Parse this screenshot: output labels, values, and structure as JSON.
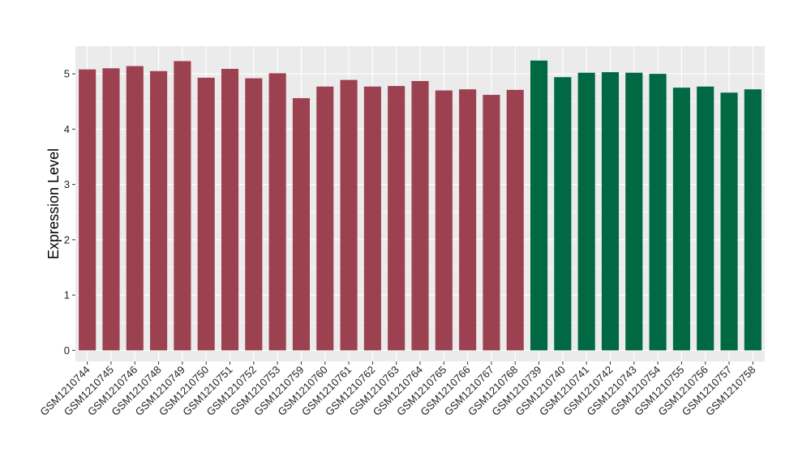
{
  "chart_data": {
    "type": "bar",
    "title": "",
    "xlabel": "",
    "ylabel": "Expression Level",
    "ylim": [
      -0.2,
      5.5
    ],
    "yticks": [
      0,
      1,
      2,
      3,
      4,
      5
    ],
    "grid": true,
    "legend": "none",
    "colors": {
      "group_1": "#9B4150",
      "group_2": "#006842",
      "panel_background": "#EBEBEB",
      "gridline": "#FFFFFF"
    },
    "categories": [
      "GSM1210744",
      "GSM1210745",
      "GSM1210746",
      "GSM1210748",
      "GSM1210749",
      "GSM1210750",
      "GSM1210751",
      "GSM1210752",
      "GSM1210753",
      "GSM1210759",
      "GSM1210760",
      "GSM1210761",
      "GSM1210762",
      "GSM1210763",
      "GSM1210764",
      "GSM1210765",
      "GSM1210766",
      "GSM1210767",
      "GSM1210768",
      "GSM1210739",
      "GSM1210740",
      "GSM1210741",
      "GSM1210742",
      "GSM1210743",
      "GSM1210754",
      "GSM1210755",
      "GSM1210756",
      "GSM1210757",
      "GSM1210758"
    ],
    "values": [
      5.08,
      5.1,
      5.14,
      5.05,
      5.23,
      4.93,
      5.09,
      4.92,
      5.01,
      4.56,
      4.77,
      4.89,
      4.77,
      4.78,
      4.87,
      4.7,
      4.72,
      4.62,
      4.71,
      5.24,
      4.94,
      5.02,
      5.03,
      5.02,
      5.0,
      4.75,
      4.77,
      4.66,
      4.72
    ],
    "groups": [
      1,
      1,
      1,
      1,
      1,
      1,
      1,
      1,
      1,
      1,
      1,
      1,
      1,
      1,
      1,
      1,
      1,
      1,
      1,
      2,
      2,
      2,
      2,
      2,
      2,
      2,
      2,
      2,
      2
    ]
  }
}
